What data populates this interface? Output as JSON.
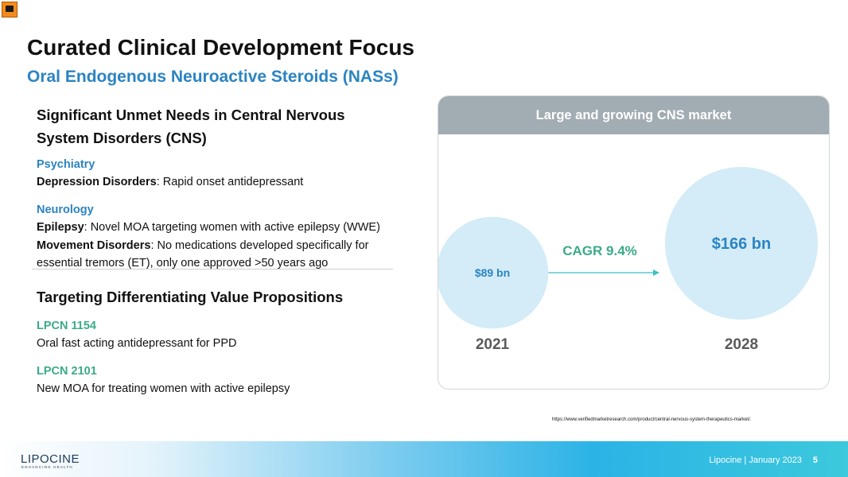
{
  "header": {
    "title": "Curated Clinical Development Focus",
    "subtitle": "Oral Endogenous Neuroactive Steroids (NASs)"
  },
  "unmet_needs": {
    "heading_line1": "Significant Unmet Needs in Central Nervous",
    "heading_line2": "System Disorders (CNS)",
    "psychiatry": {
      "label": "Psychiatry",
      "depression_term": "Depression Disorders",
      "depression_desc": ":  Rapid onset antidepressant"
    },
    "neurology": {
      "label": "Neurology",
      "epilepsy_term": "Epilepsy",
      "epilepsy_desc": ": Novel MOA targeting women with active epilepsy (WWE)",
      "movement_term": "Movement Disorders",
      "movement_desc": ": No medications developed specifically for",
      "movement_desc2": "essential tremors (ET), only one approved >50 years ago"
    }
  },
  "value_props": {
    "heading": "Targeting Differentiating Value Propositions",
    "items": [
      {
        "name": "LPCN 1154",
        "desc": "Oral fast acting antidepressant for PPD"
      },
      {
        "name": "LPCN 2101",
        "desc": "New MOA for treating women with active epilepsy"
      }
    ]
  },
  "market_card": {
    "header": "Large and growing CNS market",
    "cagr_label": "CAGR 9.4%"
  },
  "chart_data": {
    "type": "bubble",
    "title": "Large and growing CNS market",
    "categories": [
      "2021",
      "2028"
    ],
    "values": [
      89,
      166
    ],
    "value_labels": [
      "$89 bn",
      "$166 bn"
    ],
    "unit": "bn USD",
    "annotation": "CAGR 9.4%",
    "colors": {
      "bubble": "#d3ecf7",
      "text": "#2b84c2",
      "arrow": "#3bbfc7",
      "cagr": "#3aab8a"
    }
  },
  "source_text": "https://www.verifiedmarketresearch.com/product/central-nervous-system-therapeutics-market/.",
  "footer": {
    "logo": "LIPOCINE",
    "logo_tagline": "ENHANCING HEALTH",
    "company_date": "Lipocine  |   January 2023",
    "page": "5"
  }
}
